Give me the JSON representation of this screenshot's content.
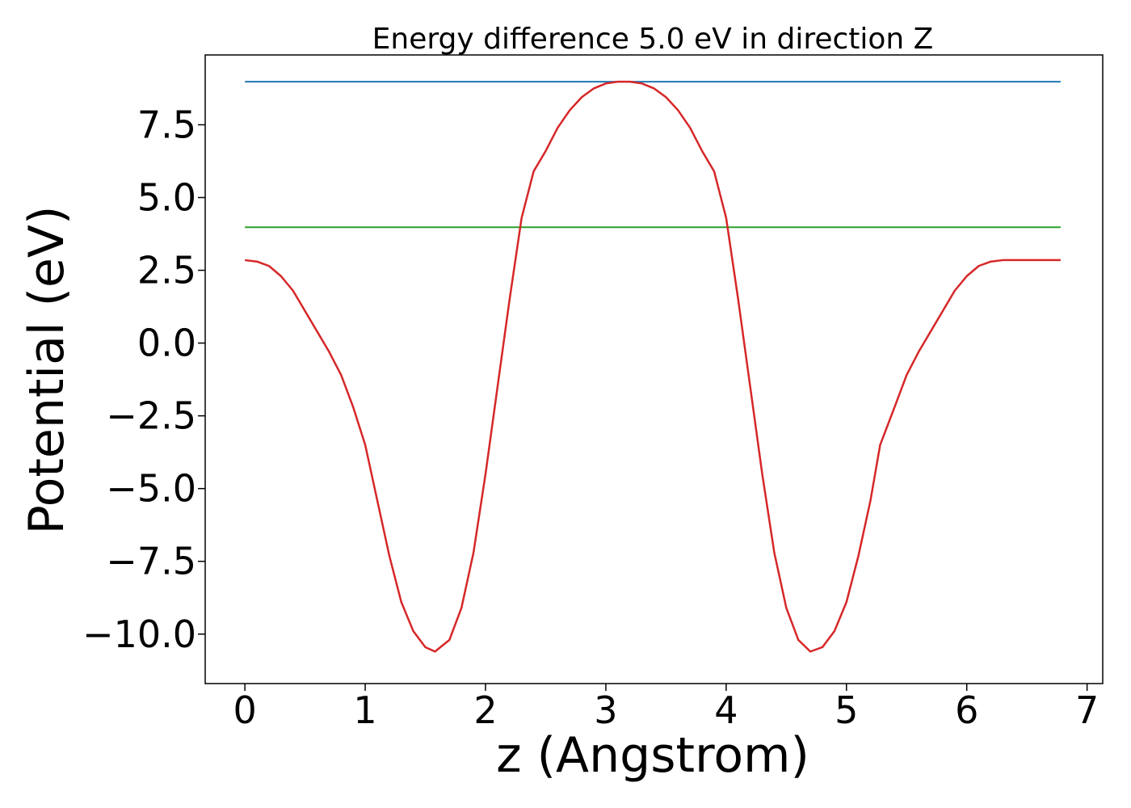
{
  "chart_data": {
    "type": "line",
    "title": "Energy difference 5.0 eV in direction Z",
    "xlabel": "z (Angstrom)",
    "ylabel": "Potential (eV)",
    "xlim": [
      -0.33,
      7.13
    ],
    "ylim": [
      -11.7,
      9.9
    ],
    "grid": false,
    "x_ticks": [
      {
        "value": 0,
        "label": "0"
      },
      {
        "value": 1,
        "label": "1"
      },
      {
        "value": 2,
        "label": "2"
      },
      {
        "value": 3,
        "label": "3"
      },
      {
        "value": 4,
        "label": "4"
      },
      {
        "value": 5,
        "label": "5"
      },
      {
        "value": 6,
        "label": "6"
      },
      {
        "value": 7,
        "label": "7"
      }
    ],
    "y_ticks": [
      {
        "value": 7.5,
        "label": "7.5"
      },
      {
        "value": 5.0,
        "label": "5.0"
      },
      {
        "value": 2.5,
        "label": "2.5"
      },
      {
        "value": 0.0,
        "label": "0.0"
      },
      {
        "value": -2.5,
        "label": "−2.5"
      },
      {
        "value": -5.0,
        "label": "−5.0"
      },
      {
        "value": -7.5,
        "label": "−7.5"
      },
      {
        "value": -10.0,
        "label": "−10.0"
      }
    ],
    "series": [
      {
        "color": "#1f77b4",
        "x": [
          0,
          6.78
        ],
        "y": [
          8.98,
          8.98
        ]
      },
      {
        "color": "#2ca02c",
        "x": [
          0,
          6.78
        ],
        "y": [
          3.98,
          3.98
        ]
      },
      {
        "color": "#d62728",
        "x": [
          0.0,
          0.1,
          0.2,
          0.3,
          0.4,
          0.5,
          0.6,
          0.7,
          0.8,
          0.9,
          1.0,
          1.1,
          1.2,
          1.3,
          1.4,
          1.5,
          1.58,
          1.7,
          1.8,
          1.9,
          2.0,
          2.1,
          2.2,
          2.3,
          2.4,
          2.5,
          2.6,
          2.7,
          2.8,
          2.9,
          3.0,
          3.1,
          3.2,
          3.3,
          3.4,
          3.5,
          3.6,
          3.7,
          3.8,
          3.9,
          4.0,
          4.1,
          4.2,
          4.3,
          4.4,
          4.5,
          4.6,
          4.7,
          4.8,
          4.9,
          5.0,
          5.1,
          5.2,
          5.28,
          5.4,
          5.5,
          5.6,
          5.7,
          5.8,
          5.9,
          6.0,
          6.1,
          6.2,
          6.3,
          6.4,
          6.5,
          6.6,
          6.7,
          6.78
        ],
        "y": [
          2.85,
          2.8,
          2.65,
          2.3,
          1.8,
          1.1,
          0.4,
          -0.3,
          -1.1,
          -2.2,
          -3.5,
          -5.4,
          -7.3,
          -8.9,
          -9.9,
          -10.45,
          -10.6,
          -10.2,
          -9.1,
          -7.2,
          -4.5,
          -1.5,
          1.5,
          4.3,
          5.9,
          6.6,
          7.4,
          8.0,
          8.45,
          8.75,
          8.92,
          8.98,
          8.98,
          8.92,
          8.75,
          8.45,
          8.0,
          7.4,
          6.6,
          5.9,
          4.3,
          1.5,
          -1.5,
          -4.5,
          -7.2,
          -9.1,
          -10.2,
          -10.6,
          -10.45,
          -9.9,
          -8.9,
          -7.3,
          -5.4,
          -3.5,
          -2.2,
          -1.1,
          -0.3,
          0.4,
          1.1,
          1.8,
          2.3,
          2.65,
          2.8,
          2.85,
          2.85,
          2.85,
          2.85,
          2.85,
          2.85
        ]
      }
    ]
  }
}
